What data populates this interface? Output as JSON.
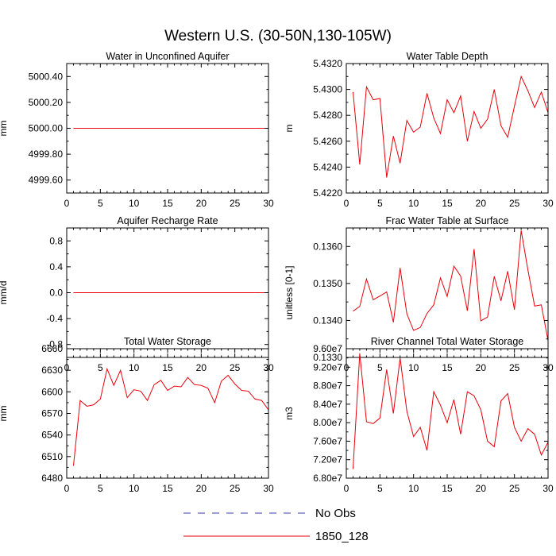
{
  "figure": {
    "title": "Western U.S. (30-50N,130-105W)"
  },
  "legend": [
    {
      "name": "No Obs",
      "color": "#3b3bb0",
      "dash": true
    },
    {
      "name": "1850_128",
      "color": "#e8000b",
      "dash": false
    }
  ],
  "chart_data": [
    {
      "type": "line",
      "title": "Water in Unconfined Aquifer",
      "xlabel": "",
      "ylabel": "mm",
      "xlim": [
        0,
        30
      ],
      "ylim": [
        4999.5,
        5000.5
      ],
      "xticks": [
        0,
        5,
        10,
        15,
        20,
        25,
        30
      ],
      "yticks": [
        4999.6,
        4999.8,
        5000.0,
        5000.2,
        5000.4
      ],
      "ytick_labels": [
        "4999.60",
        "4999.80",
        "5000.00",
        "5000.20",
        "5000.40"
      ],
      "grid": false,
      "series": [
        {
          "name": "1850_128",
          "color": "#e8000b",
          "x": [
            1,
            30
          ],
          "y": [
            5000.0,
            5000.0
          ]
        }
      ]
    },
    {
      "type": "line",
      "title": "Water Table Depth",
      "xlabel": "",
      "ylabel": "m",
      "xlim": [
        0,
        30
      ],
      "ylim": [
        5.422,
        5.432
      ],
      "xticks": [
        0,
        5,
        10,
        15,
        20,
        25,
        30
      ],
      "yticks": [
        5.422,
        5.424,
        5.426,
        5.428,
        5.43,
        5.432
      ],
      "ytick_labels": [
        "5.4220",
        "5.4240",
        "5.4260",
        "5.4280",
        "5.4300",
        "5.4320"
      ],
      "grid": false,
      "series": [
        {
          "name": "1850_128",
          "color": "#e8000b",
          "x": [
            1,
            2,
            3,
            4,
            5,
            6,
            7,
            8,
            9,
            10,
            11,
            12,
            13,
            14,
            15,
            16,
            17,
            18,
            19,
            20,
            21,
            22,
            23,
            24,
            25,
            26,
            27,
            28,
            29,
            30
          ],
          "y": [
            5.4298,
            5.4242,
            5.4302,
            5.4292,
            5.4293,
            5.4232,
            5.4264,
            5.4243,
            5.4276,
            5.4267,
            5.4271,
            5.4297,
            5.4278,
            5.4266,
            5.4292,
            5.4282,
            5.4295,
            5.426,
            5.4283,
            5.427,
            5.4277,
            5.43,
            5.4272,
            5.4263,
            5.4287,
            5.431,
            5.4299,
            5.4286,
            5.4298,
            5.4282
          ]
        }
      ]
    },
    {
      "type": "line",
      "title": "Aquifer Recharge Rate",
      "xlabel": "",
      "ylabel": "mm/d",
      "xlim": [
        0,
        30
      ],
      "ylim": [
        -1.0,
        1.0
      ],
      "xticks": [
        0,
        5,
        10,
        15,
        20,
        25,
        30
      ],
      "yticks": [
        -0.8,
        -0.4,
        0.0,
        0.4,
        0.8
      ],
      "ytick_labels": [
        "-0.8",
        "-0.4",
        "0.0",
        "0.4",
        "0.8"
      ],
      "grid": false,
      "series": [
        {
          "name": "1850_128",
          "color": "#e8000b",
          "x": [
            1,
            30
          ],
          "y": [
            0.0,
            0.0
          ]
        }
      ]
    },
    {
      "type": "line",
      "title": "Frac Water Table at Surface",
      "xlabel": "",
      "ylabel": "unitless [0-1]",
      "xlim": [
        0,
        30
      ],
      "ylim": [
        0.133,
        0.1365
      ],
      "xticks": [
        0,
        5,
        10,
        15,
        20,
        25,
        30
      ],
      "yticks": [
        0.133,
        0.134,
        0.135,
        0.136
      ],
      "ytick_labels": [
        "0.1330",
        "0.1340",
        "0.1350",
        "0.1360"
      ],
      "grid": false,
      "series": [
        {
          "name": "1850_128",
          "color": "#e8000b",
          "x": [
            1,
            2,
            3,
            4,
            5,
            6,
            7,
            8,
            9,
            10,
            11,
            12,
            13,
            14,
            15,
            16,
            17,
            18,
            19,
            20,
            21,
            22,
            23,
            24,
            25,
            26,
            27,
            28,
            29,
            30
          ],
          "y": [
            0.13425,
            0.13438,
            0.13512,
            0.13456,
            0.13466,
            0.13477,
            0.13395,
            0.13542,
            0.13418,
            0.13373,
            0.13381,
            0.13419,
            0.13442,
            0.13515,
            0.13465,
            0.13547,
            0.1352,
            0.13426,
            0.13593,
            0.13399,
            0.13409,
            0.13519,
            0.13453,
            0.13533,
            0.13429,
            0.13643,
            0.13537,
            0.13439,
            0.13442,
            0.13345
          ]
        }
      ]
    },
    {
      "type": "line",
      "title": "Total Water Storage",
      "xlabel": "",
      "ylabel": "mm",
      "xlim": [
        0,
        30
      ],
      "ylim": [
        6480,
        6660
      ],
      "xticks": [
        0,
        5,
        10,
        15,
        20,
        25,
        30
      ],
      "yticks": [
        6480,
        6510,
        6540,
        6570,
        6600,
        6630,
        6660
      ],
      "ytick_labels": [
        "6480",
        "6510",
        "6540",
        "6570",
        "6600",
        "6630",
        "6660"
      ],
      "grid": false,
      "series": [
        {
          "name": "1850_128",
          "color": "#e8000b",
          "x": [
            1,
            2,
            3,
            4,
            5,
            6,
            7,
            8,
            9,
            10,
            11,
            12,
            13,
            14,
            15,
            16,
            17,
            18,
            19,
            20,
            21,
            22,
            23,
            24,
            25,
            26,
            27,
            28,
            29,
            30
          ],
          "y": [
            6497,
            6588,
            6580,
            6582,
            6590,
            6632,
            6609,
            6630,
            6592,
            6603,
            6601,
            6588,
            6610,
            6616,
            6602,
            6608,
            6607,
            6620,
            6610,
            6609,
            6605,
            6585,
            6615,
            6623,
            6611,
            6602,
            6601,
            6590,
            6588,
            6575
          ]
        }
      ]
    },
    {
      "type": "line",
      "title": "River Channel Total Water Storage",
      "xlabel": "",
      "ylabel": "m3",
      "xlim": [
        0,
        30
      ],
      "ylim": [
        68000000,
        96000000
      ],
      "xticks": [
        0,
        5,
        10,
        15,
        20,
        25,
        30
      ],
      "yticks": [
        68000000,
        72000000,
        76000000,
        80000000,
        84000000,
        88000000,
        92000000,
        96000000
      ],
      "ytick_labels": [
        "6.80e7",
        "7.20e7",
        "7.60e7",
        "8.00e7",
        "8.40e7",
        "8.80e7",
        "9.20e7",
        "9.60e7"
      ],
      "grid": false,
      "series": [
        {
          "name": "1850_128",
          "color": "#e8000b",
          "x": [
            1,
            2,
            3,
            4,
            5,
            6,
            7,
            8,
            9,
            10,
            11,
            12,
            13,
            14,
            15,
            16,
            17,
            18,
            19,
            20,
            21,
            22,
            23,
            24,
            25,
            26,
            27,
            28,
            29,
            30
          ],
          "y": [
            70000000,
            95000000,
            80200000,
            79800000,
            81000000,
            91500000,
            82000000,
            94000000,
            82500000,
            77000000,
            79000000,
            74000000,
            86700000,
            83800000,
            80000000,
            85000000,
            77500000,
            86700000,
            85800000,
            82800000,
            76000000,
            74800000,
            84700000,
            86300000,
            79000000,
            76000000,
            78700000,
            77500000,
            73000000,
            75800000
          ]
        }
      ]
    }
  ]
}
